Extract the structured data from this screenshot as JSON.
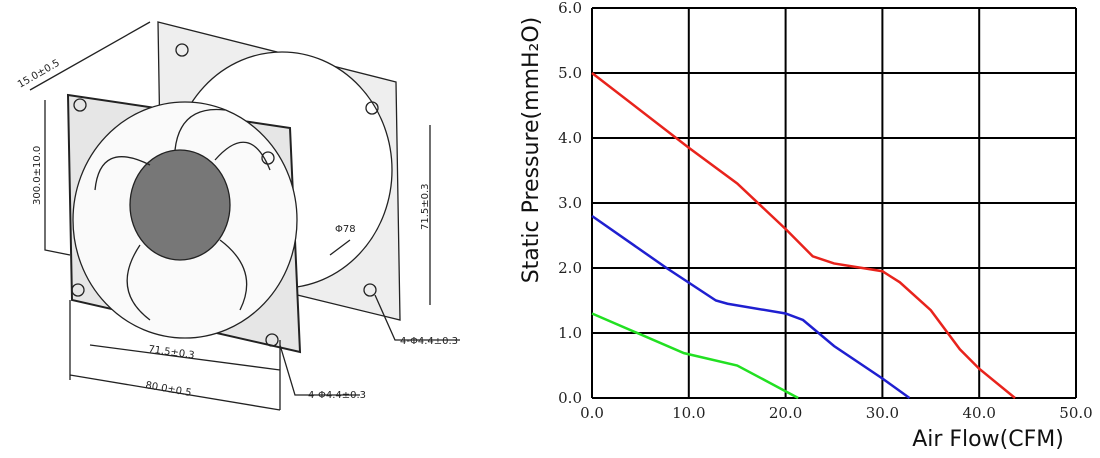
{
  "drawing_labels": [
    "15.0±0.5",
    "300.0±10.0",
    "71.5±0.3",
    "Φ78",
    "4-Φ4.4±0.3",
    "71.5±0.3",
    "80.0±0.5",
    "4-Φ4.4±0.3"
  ],
  "chart_data": {
    "type": "line",
    "x_label": "Air Flow(CFM)",
    "y_label": "Static Pressure(mmH₂O)",
    "xlim": [
      0,
      50
    ],
    "ylim": [
      0,
      6
    ],
    "xticks": [
      {
        "value": 0,
        "label": "0.0"
      },
      {
        "value": 10,
        "label": "10.0"
      },
      {
        "value": 20,
        "label": "20.0"
      },
      {
        "value": 30,
        "label": "30.0"
      },
      {
        "value": 40,
        "label": "40.0"
      },
      {
        "value": 50,
        "label": "50.0"
      }
    ],
    "yticks": [
      {
        "value": 0,
        "label": "0.0"
      },
      {
        "value": 1,
        "label": "1.0"
      },
      {
        "value": 2,
        "label": "2.0"
      },
      {
        "value": 3,
        "label": "3.0"
      },
      {
        "value": 4,
        "label": "4.0"
      },
      {
        "value": 5,
        "label": "5.0"
      },
      {
        "value": 6,
        "label": "6.0"
      }
    ],
    "grid": true,
    "series": [
      {
        "color": "#e8231c",
        "x": [
          0,
          10,
          15,
          20,
          22.8,
          25,
          30,
          31.8,
          35,
          38,
          40,
          43.7
        ],
        "values": [
          5.0,
          3.85,
          3.3,
          2.6,
          2.18,
          2.07,
          1.95,
          1.78,
          1.35,
          0.75,
          0.45,
          0
        ]
      },
      {
        "color": "#1f1fd0",
        "x": [
          0,
          7.7,
          12.8,
          14,
          20,
          21.8,
          25,
          30,
          32.8
        ],
        "values": [
          2.8,
          2.0,
          1.5,
          1.45,
          1.3,
          1.2,
          0.8,
          0.3,
          0
        ]
      },
      {
        "color": "#22e022",
        "x": [
          0,
          9.5,
          15,
          21.3
        ],
        "values": [
          1.3,
          0.69,
          0.5,
          0
        ]
      }
    ]
  }
}
